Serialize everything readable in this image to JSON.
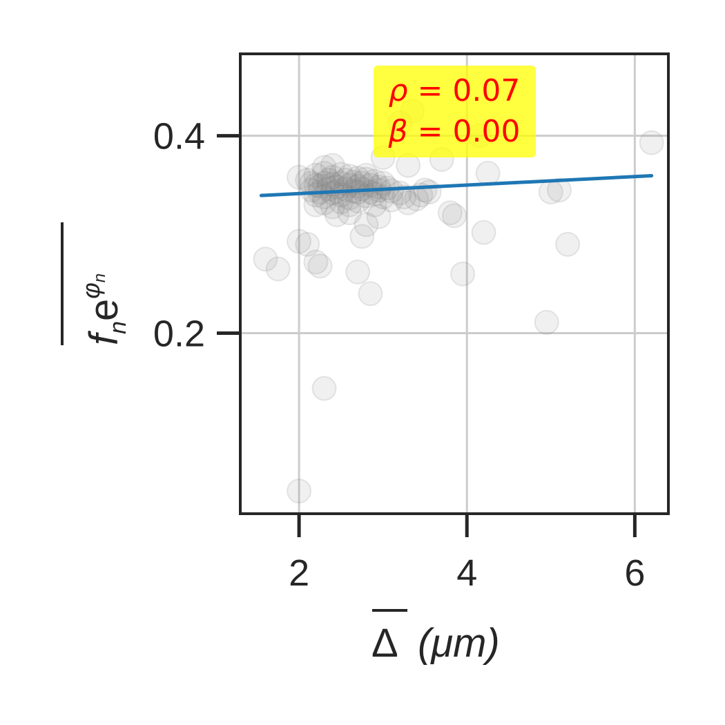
{
  "chart_data": {
    "type": "scatter",
    "title": "",
    "xlabel": "Δ (μm)",
    "ylabel": "f_n e^{φ_n}",
    "xlabel_parts": {
      "symbol": "Δ",
      "unit": "(μm)"
    },
    "ylabel_parts": {
      "f": "f",
      "f_sub": "n",
      "e": "e",
      "exp": "φ",
      "exp_sub": "n"
    },
    "xlim": [
      1.3,
      6.4
    ],
    "ylim": [
      0.017,
      0.483
    ],
    "xticks": [
      2,
      4,
      6
    ],
    "xtick_labels": [
      "2",
      "4",
      "6"
    ],
    "yticks": [
      0.2,
      0.4
    ],
    "ytick_labels": [
      "0.2",
      "0.4"
    ],
    "grid": true,
    "point_color": "#808080",
    "line_color": "#1f77b4",
    "annotation": {
      "lines": [
        "ρ = 0.07",
        "β = 0.00"
      ],
      "rho_symbol": "ρ",
      "rho_value": "0.07",
      "beta_symbol": "β",
      "beta_value": "0.00",
      "background": "#ffff00",
      "text_color": "#ff0000"
    },
    "regression": {
      "x": [
        1.55,
        6.2
      ],
      "y": [
        0.3395,
        0.3595
      ]
    },
    "scatter": [
      [
        2.0,
        0.04
      ],
      [
        2.3,
        0.144
      ],
      [
        1.6,
        0.275
      ],
      [
        1.75,
        0.265
      ],
      [
        2.0,
        0.293
      ],
      [
        2.1,
        0.29
      ],
      [
        2.2,
        0.272
      ],
      [
        2.25,
        0.268
      ],
      [
        2.7,
        0.262
      ],
      [
        2.85,
        0.24
      ],
      [
        2.75,
        0.298
      ],
      [
        2.8,
        0.31
      ],
      [
        2.95,
        0.318
      ],
      [
        3.3,
        0.332
      ],
      [
        3.45,
        0.34
      ],
      [
        3.55,
        0.343
      ],
      [
        3.8,
        0.322
      ],
      [
        3.85,
        0.319
      ],
      [
        4.2,
        0.302
      ],
      [
        3.95,
        0.26
      ],
      [
        4.95,
        0.211
      ],
      [
        5.0,
        0.343
      ],
      [
        5.1,
        0.345
      ],
      [
        5.2,
        0.29
      ],
      [
        6.2,
        0.393
      ],
      [
        4.25,
        0.362
      ],
      [
        3.7,
        0.376
      ],
      [
        3.3,
        0.37
      ],
      [
        3.35,
        0.425
      ],
      [
        3.2,
        0.413
      ],
      [
        4.15,
        0.4
      ],
      [
        3.0,
        0.378
      ],
      [
        2.3,
        0.368
      ],
      [
        2.4,
        0.37
      ],
      [
        2.0,
        0.358
      ],
      [
        2.1,
        0.355
      ],
      [
        2.15,
        0.352
      ],
      [
        2.2,
        0.35
      ],
      [
        2.25,
        0.349
      ],
      [
        2.3,
        0.352
      ],
      [
        2.35,
        0.355
      ],
      [
        2.4,
        0.351
      ],
      [
        2.45,
        0.348
      ],
      [
        2.5,
        0.352
      ],
      [
        2.55,
        0.355
      ],
      [
        2.6,
        0.35
      ],
      [
        2.65,
        0.353
      ],
      [
        2.7,
        0.349
      ],
      [
        2.75,
        0.352
      ],
      [
        2.8,
        0.356
      ],
      [
        2.85,
        0.35
      ],
      [
        2.9,
        0.354
      ],
      [
        2.95,
        0.348
      ],
      [
        3.0,
        0.352
      ],
      [
        2.2,
        0.34
      ],
      [
        2.3,
        0.338
      ],
      [
        2.4,
        0.342
      ],
      [
        2.5,
        0.34
      ],
      [
        2.6,
        0.337
      ],
      [
        2.7,
        0.343
      ],
      [
        2.8,
        0.339
      ],
      [
        2.9,
        0.341
      ],
      [
        3.0,
        0.338
      ],
      [
        3.1,
        0.344
      ],
      [
        3.2,
        0.342
      ],
      [
        2.15,
        0.345
      ],
      [
        2.25,
        0.343
      ],
      [
        2.35,
        0.346
      ],
      [
        2.45,
        0.344
      ],
      [
        2.55,
        0.346
      ],
      [
        2.65,
        0.344
      ],
      [
        2.75,
        0.346
      ],
      [
        2.85,
        0.343
      ],
      [
        2.95,
        0.345
      ],
      [
        3.05,
        0.347
      ],
      [
        2.2,
        0.36
      ],
      [
        2.3,
        0.362
      ],
      [
        2.4,
        0.358
      ],
      [
        2.5,
        0.361
      ],
      [
        2.6,
        0.359
      ],
      [
        2.7,
        0.357
      ],
      [
        2.8,
        0.36
      ],
      [
        2.3,
        0.332
      ],
      [
        2.4,
        0.328
      ],
      [
        2.5,
        0.333
      ],
      [
        2.6,
        0.33
      ],
      [
        2.7,
        0.334
      ],
      [
        2.2,
        0.33
      ],
      [
        2.45,
        0.32
      ],
      [
        2.6,
        0.322
      ],
      [
        3.1,
        0.335
      ],
      [
        3.25,
        0.338
      ],
      [
        3.4,
        0.336
      ],
      [
        3.5,
        0.345
      ],
      [
        2.9,
        0.33
      ]
    ]
  }
}
